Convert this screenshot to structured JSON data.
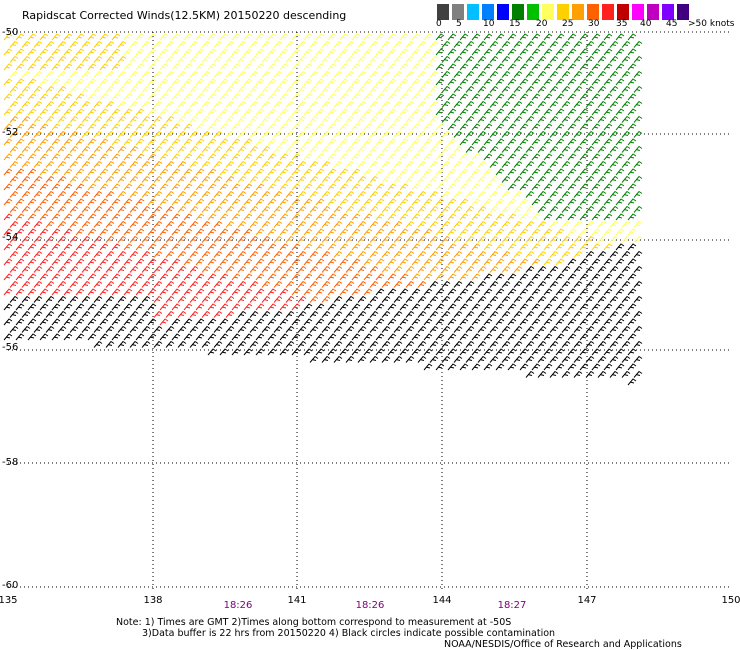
{
  "header": {
    "title": "Rapidscat Corrected Winds(12.5KM) 20150220 descending"
  },
  "legend": {
    "colors": [
      "#404040",
      "#808080",
      "#00c0ff",
      "#0080ff",
      "#0000ff",
      "#008000",
      "#00c000",
      "#ffff60",
      "#ffd000",
      "#ffa000",
      "#ff6000",
      "#ff2020",
      "#c00000",
      "#ff00ff",
      "#c000c0",
      "#8000ff",
      "#400080"
    ],
    "labels": [
      "0",
      "5",
      "10",
      "15",
      "20",
      "25",
      "30",
      "35",
      "40",
      "45",
      ">50 knots"
    ]
  },
  "axes": {
    "lat_labels": [
      "-50",
      "-52",
      "-54",
      "-56",
      "-58",
      "-60"
    ],
    "lon_labels": [
      "135",
      "138",
      "141",
      "144",
      "147",
      "150"
    ],
    "time_labels": [
      "18:26",
      "18:26",
      "18:27"
    ]
  },
  "notes": {
    "line1": "Note: 1) Times are GMT 2)Times along bottom correspond to measurement at -50S",
    "line2": "3)Data buffer is 22 hrs from 20150220 4) Black circles indicate possible contamination",
    "credit": "NOAA/NESDIS/Office of Research and Applications"
  },
  "wind_field": {
    "color_zones": [
      {
        "label": "20",
        "color": "#ffff60"
      },
      {
        "label": "25",
        "color": "#ffd000"
      },
      {
        "label": "30",
        "color": "#ffa000"
      },
      {
        "label": "35",
        "color": "#ff6000"
      },
      {
        "label": "40",
        "color": "#ff2020"
      },
      {
        "label": "15",
        "color": "#008000"
      },
      {
        "label": "0",
        "color": "#000000"
      }
    ]
  }
}
